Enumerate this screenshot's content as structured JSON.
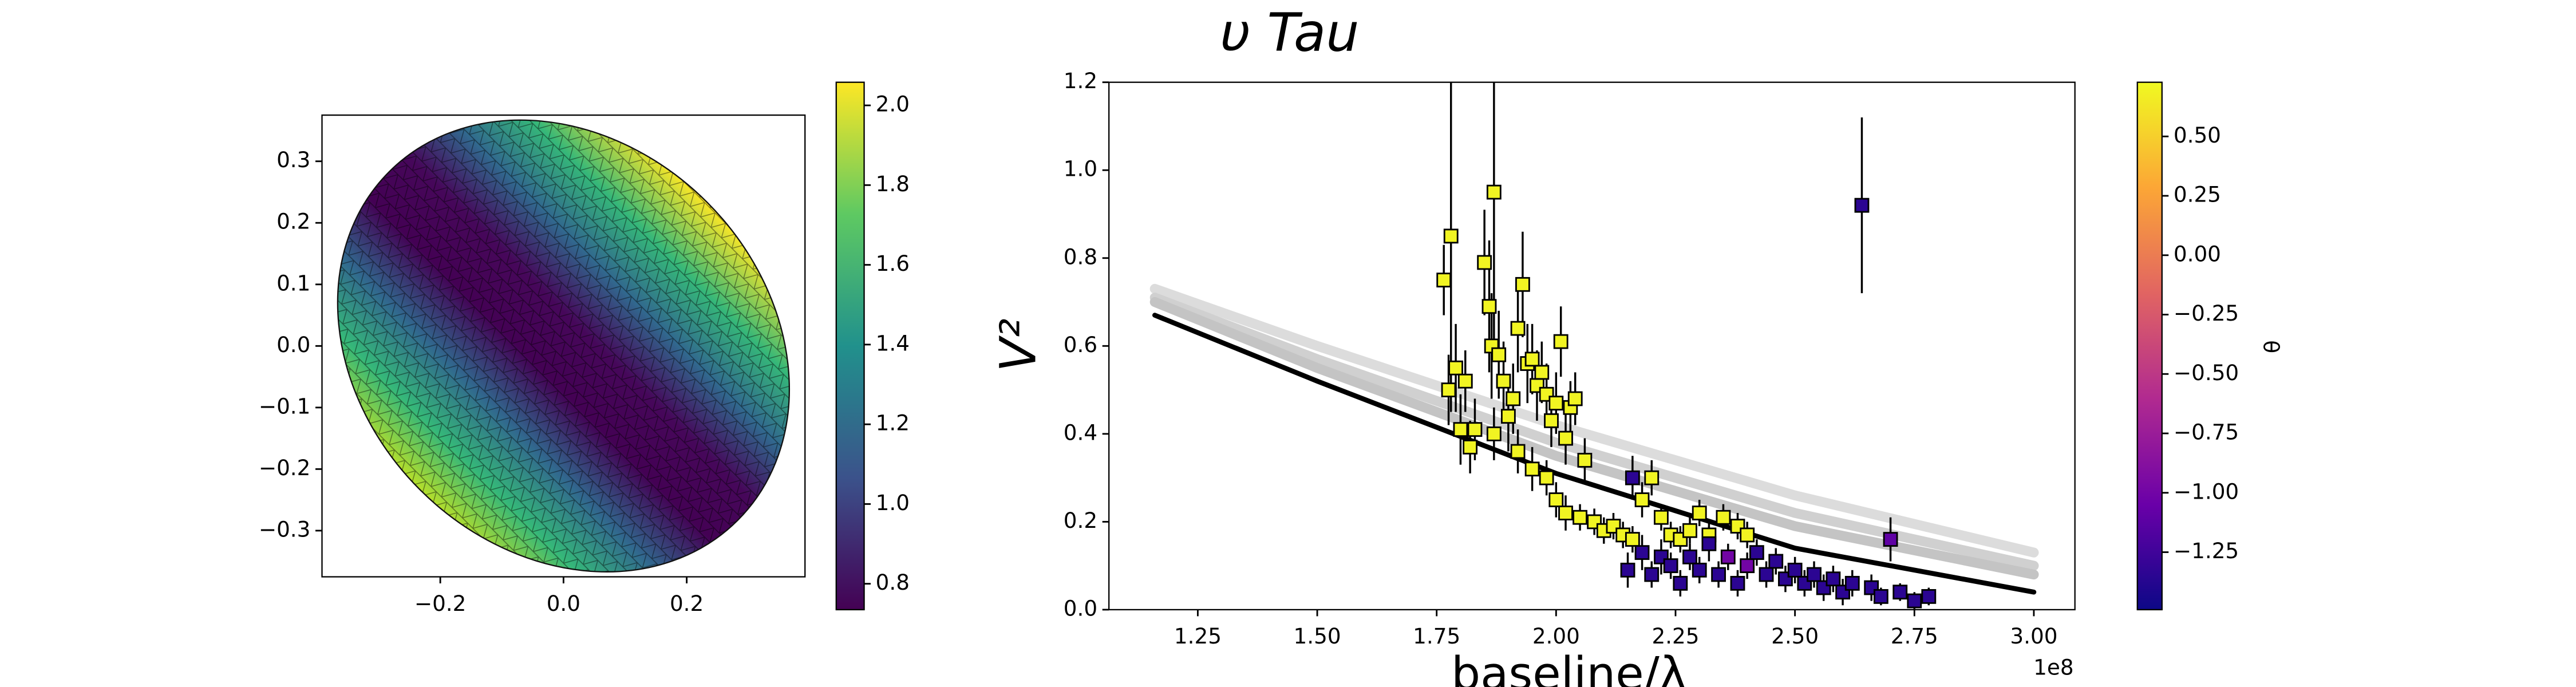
{
  "chart_data": [
    {
      "type": "surface",
      "xlim": [
        -0.392,
        0.392
      ],
      "ylim": [
        -0.375,
        0.375
      ],
      "xticks": [
        {
          "value": -0.2,
          "label": "−0.2"
        },
        {
          "value": 0,
          "label": "0.0"
        },
        0.2
      ],
      "yticks": [
        {
          "value": -0.3,
          "label": "−0.3"
        },
        {
          "value": -0.2,
          "label": "−0.2"
        },
        {
          "value": -0.1,
          "label": "−0.1"
        },
        {
          "value": 0,
          "label": "0.0"
        },
        0.1,
        0.2,
        0.3
      ],
      "shape": {
        "center": [
          0,
          0
        ],
        "semi_axes": [
          0.4,
          0.33
        ],
        "angle": -45
      },
      "colormap": "viridis",
      "clim": [
        0.735,
        2.058
      ],
      "cticks": [
        0.8,
        {
          "value": 1,
          "label": "1.0"
        },
        1.2,
        1.4,
        1.6,
        1.8,
        {
          "value": 2,
          "label": "2.0"
        }
      ]
    },
    {
      "type": "scatter",
      "title": "υ Tau",
      "xlabel": "baseline/λ",
      "ylabel": "V²",
      "x_offset_label": "1e8",
      "xlim": [
        1.064,
        3.086
      ],
      "ylim": [
        0,
        1.2
      ],
      "xticks": [
        1.25,
        {
          "value": 1.5,
          "label": "1.50"
        },
        1.75,
        {
          "value": 2,
          "label": "2.00"
        },
        2.25,
        {
          "value": 2.5,
          "label": "2.50"
        },
        2.75,
        {
          "value": 3,
          "label": "3.00"
        }
      ],
      "yticks": [
        {
          "value": 0,
          "label": "0.0"
        },
        0.2,
        0.4,
        0.6,
        0.8,
        {
          "value": 1,
          "label": "1.0"
        },
        1.2
      ],
      "models": [
        {
          "color": "#dcdcdc",
          "x": [
            1.16,
            1.5,
            2.0,
            2.5,
            3.0
          ],
          "values": [
            0.73,
            0.6,
            0.42,
            0.26,
            0.13
          ]
        },
        {
          "color": "#d0d0d0",
          "x": [
            1.16,
            1.5,
            2.0,
            2.5,
            3.0
          ],
          "values": [
            0.71,
            0.57,
            0.38,
            0.22,
            0.1
          ]
        },
        {
          "color": "#c4c4c4",
          "x": [
            1.16,
            1.5,
            2.0,
            2.5,
            3.0
          ],
          "values": [
            0.7,
            0.55,
            0.35,
            0.19,
            0.08
          ]
        },
        {
          "color": "#000000",
          "x": [
            1.16,
            1.5,
            2.0,
            2.5,
            3.0
          ],
          "values": [
            0.67,
            0.52,
            0.31,
            0.14,
            0.04
          ]
        }
      ],
      "points": {
        "x": [
          1.765,
          1.775,
          1.78,
          1.79,
          1.8,
          1.81,
          1.82,
          1.83,
          1.85,
          1.86,
          1.865,
          1.87,
          1.88,
          1.89,
          1.9,
          1.91,
          1.92,
          1.93,
          1.94,
          1.95,
          1.96,
          1.97,
          1.98,
          1.99,
          2.0,
          2.01,
          2.02,
          2.03,
          2.04,
          2.06,
          1.87,
          1.92,
          1.95,
          1.98,
          2.0,
          2.02,
          2.05,
          2.08,
          2.1,
          2.12,
          2.14,
          2.16,
          2.18,
          2.2,
          2.22,
          2.24,
          2.26,
          2.28,
          2.3,
          2.32,
          2.35,
          2.38,
          2.4,
          2.15,
          2.16,
          2.18,
          2.2,
          2.22,
          2.24,
          2.26,
          2.28,
          2.3,
          2.32,
          2.34,
          2.36,
          2.38,
          2.4,
          2.42,
          2.44,
          2.46,
          2.48,
          2.5,
          2.52,
          2.54,
          2.56,
          2.58,
          2.6,
          2.62,
          2.64,
          2.66,
          2.68,
          2.7,
          2.72,
          2.75,
          2.78
        ],
        "values": [
          0.75,
          0.5,
          0.85,
          0.55,
          0.41,
          0.52,
          0.37,
          0.41,
          0.79,
          0.69,
          0.6,
          0.95,
          0.58,
          0.52,
          0.44,
          0.48,
          0.64,
          0.74,
          0.56,
          0.57,
          0.51,
          0.54,
          0.49,
          0.43,
          0.47,
          0.61,
          0.39,
          0.46,
          0.48,
          0.34,
          0.4,
          0.36,
          0.32,
          0.3,
          0.25,
          0.22,
          0.21,
          0.2,
          0.18,
          0.19,
          0.17,
          0.16,
          0.25,
          0.3,
          0.21,
          0.17,
          0.16,
          0.18,
          0.22,
          0.17,
          0.21,
          0.19,
          0.17,
          0.09,
          0.3,
          0.13,
          0.08,
          0.12,
          0.1,
          0.06,
          0.12,
          0.09,
          0.15,
          0.08,
          0.12,
          0.06,
          0.1,
          0.13,
          0.08,
          0.11,
          0.07,
          0.09,
          0.06,
          0.08,
          0.05,
          0.07,
          0.04,
          0.06,
          0.92,
          0.05,
          0.03,
          0.16,
          0.04,
          0.02,
          0.03
        ],
        "errors": [
          0.08,
          0.08,
          0.4,
          0.1,
          0.08,
          0.07,
          0.06,
          0.07,
          0.12,
          0.15,
          0.12,
          0.35,
          0.1,
          0.09,
          0.08,
          0.08,
          0.1,
          0.12,
          0.09,
          0.08,
          0.08,
          0.07,
          0.07,
          0.06,
          0.07,
          0.08,
          0.06,
          0.06,
          0.06,
          0.05,
          0.06,
          0.05,
          0.05,
          0.04,
          0.04,
          0.04,
          0.03,
          0.03,
          0.03,
          0.03,
          0.03,
          0.03,
          0.04,
          0.04,
          0.03,
          0.03,
          0.03,
          0.03,
          0.03,
          0.03,
          0.03,
          0.03,
          0.03,
          0.04,
          0.05,
          0.04,
          0.03,
          0.04,
          0.03,
          0.03,
          0.03,
          0.03,
          0.04,
          0.03,
          0.03,
          0.03,
          0.03,
          0.03,
          0.03,
          0.03,
          0.03,
          0.03,
          0.03,
          0.03,
          0.03,
          0.03,
          0.03,
          0.03,
          0.2,
          0.03,
          0.02,
          0.05,
          0.02,
          0.02,
          0.02
        ],
        "color_values": [
          0.7,
          0.7,
          0.7,
          0.7,
          0.7,
          0.7,
          0.7,
          0.7,
          0.7,
          0.7,
          0.7,
          0.7,
          0.7,
          0.7,
          0.7,
          0.7,
          0.7,
          0.7,
          0.7,
          0.7,
          0.7,
          0.7,
          0.7,
          0.7,
          0.7,
          0.7,
          0.7,
          0.7,
          0.7,
          0.7,
          0.7,
          0.7,
          0.7,
          0.7,
          0.7,
          0.7,
          0.7,
          0.7,
          0.7,
          0.7,
          0.7,
          0.7,
          0.7,
          0.7,
          0.7,
          0.7,
          0.7,
          0.7,
          0.7,
          0.7,
          0.7,
          0.7,
          0.7,
          -1.35,
          -1.35,
          -1.35,
          -1.35,
          -1.35,
          -1.35,
          -1.35,
          -1.35,
          -1.35,
          -1.35,
          -1.35,
          -1.0,
          -1.35,
          -1.0,
          -1.35,
          -1.35,
          -1.35,
          -1.35,
          -1.35,
          -1.35,
          -1.35,
          -1.35,
          -1.35,
          -1.35,
          -1.35,
          -1.35,
          -1.35,
          -1.35,
          -1.1,
          -1.35,
          -1.35,
          -1.35
        ]
      },
      "colormap": "plasma",
      "clim": [
        -1.492,
        0.728
      ],
      "colorbar_label": "θ",
      "cticks": [
        {
          "value": 0.5,
          "label": "0.50"
        },
        0.25,
        {
          "value": 0,
          "label": "0.00"
        },
        {
          "value": -0.25,
          "label": "−0.25"
        },
        {
          "value": -0.5,
          "label": "−0.50"
        },
        {
          "value": -0.75,
          "label": "−0.75"
        },
        {
          "value": -1,
          "label": "−1.00"
        },
        {
          "value": -1.25,
          "label": "−1.25"
        }
      ]
    }
  ]
}
